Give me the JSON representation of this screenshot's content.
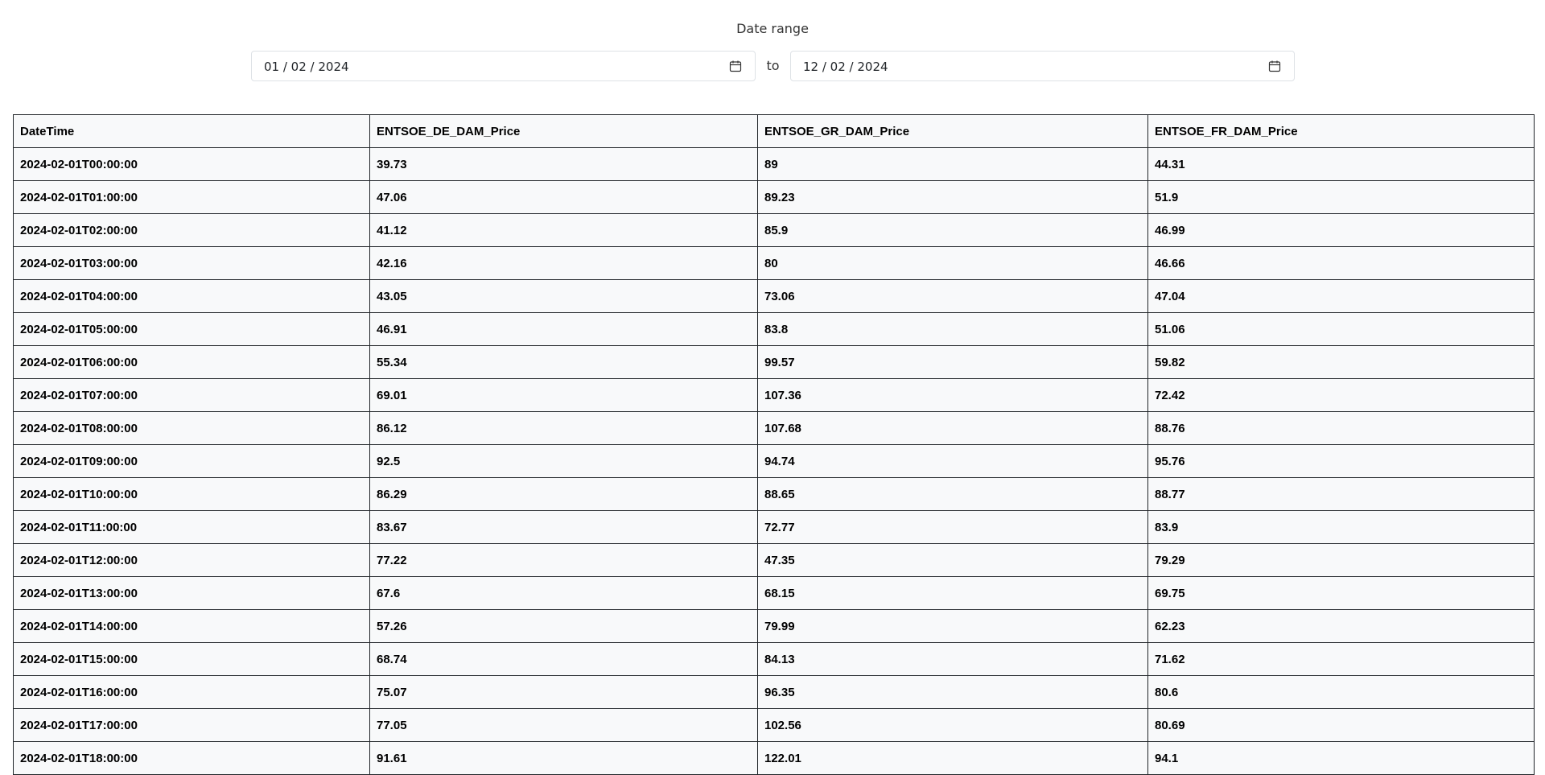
{
  "date_range": {
    "label": "Date range",
    "from_value": "01 / 02 / 2024",
    "to_label": "to",
    "to_value": "12 / 02 / 2024",
    "calendar_icon": "calendar-icon"
  },
  "table": {
    "headers": [
      "DateTime",
      "ENTSOE_DE_DAM_Price",
      "ENTSOE_GR_DAM_Price",
      "ENTSOE_FR_DAM_Price"
    ],
    "rows": [
      [
        "2024-02-01T00:00:00",
        "39.73",
        "89",
        "44.31"
      ],
      [
        "2024-02-01T01:00:00",
        "47.06",
        "89.23",
        "51.9"
      ],
      [
        "2024-02-01T02:00:00",
        "41.12",
        "85.9",
        "46.99"
      ],
      [
        "2024-02-01T03:00:00",
        "42.16",
        "80",
        "46.66"
      ],
      [
        "2024-02-01T04:00:00",
        "43.05",
        "73.06",
        "47.04"
      ],
      [
        "2024-02-01T05:00:00",
        "46.91",
        "83.8",
        "51.06"
      ],
      [
        "2024-02-01T06:00:00",
        "55.34",
        "99.57",
        "59.82"
      ],
      [
        "2024-02-01T07:00:00",
        "69.01",
        "107.36",
        "72.42"
      ],
      [
        "2024-02-01T08:00:00",
        "86.12",
        "107.68",
        "88.76"
      ],
      [
        "2024-02-01T09:00:00",
        "92.5",
        "94.74",
        "95.76"
      ],
      [
        "2024-02-01T10:00:00",
        "86.29",
        "88.65",
        "88.77"
      ],
      [
        "2024-02-01T11:00:00",
        "83.67",
        "72.77",
        "83.9"
      ],
      [
        "2024-02-01T12:00:00",
        "77.22",
        "47.35",
        "79.29"
      ],
      [
        "2024-02-01T13:00:00",
        "67.6",
        "68.15",
        "69.75"
      ],
      [
        "2024-02-01T14:00:00",
        "57.26",
        "79.99",
        "62.23"
      ],
      [
        "2024-02-01T15:00:00",
        "68.74",
        "84.13",
        "71.62"
      ],
      [
        "2024-02-01T16:00:00",
        "75.07",
        "96.35",
        "80.6"
      ],
      [
        "2024-02-01T17:00:00",
        "77.05",
        "102.56",
        "80.69"
      ],
      [
        "2024-02-01T18:00:00",
        "91.61",
        "122.01",
        "94.1"
      ]
    ]
  }
}
